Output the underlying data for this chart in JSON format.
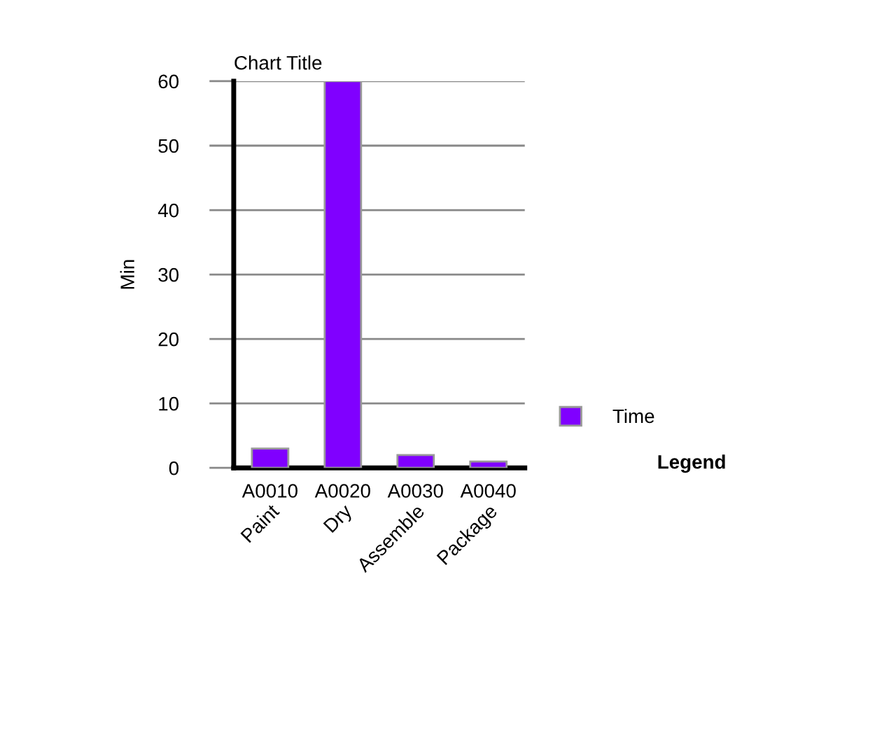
{
  "chart_data": {
    "type": "bar",
    "title": "Chart Title",
    "ylabel": "Min",
    "categories": [
      "A0010",
      "A0020",
      "A0030",
      "A0040"
    ],
    "series": [
      {
        "name": "Time",
        "color": "#8000ff",
        "values": [
          3,
          60,
          2,
          1
        ]
      }
    ],
    "annotations": [
      "Paint",
      "Dry",
      "Assemble",
      "Package"
    ],
    "ylim": [
      0,
      60
    ],
    "yticks": [
      0,
      10,
      20,
      30,
      40,
      50,
      60
    ],
    "grid": "y",
    "legend": "right",
    "legend_title": "Legend"
  }
}
